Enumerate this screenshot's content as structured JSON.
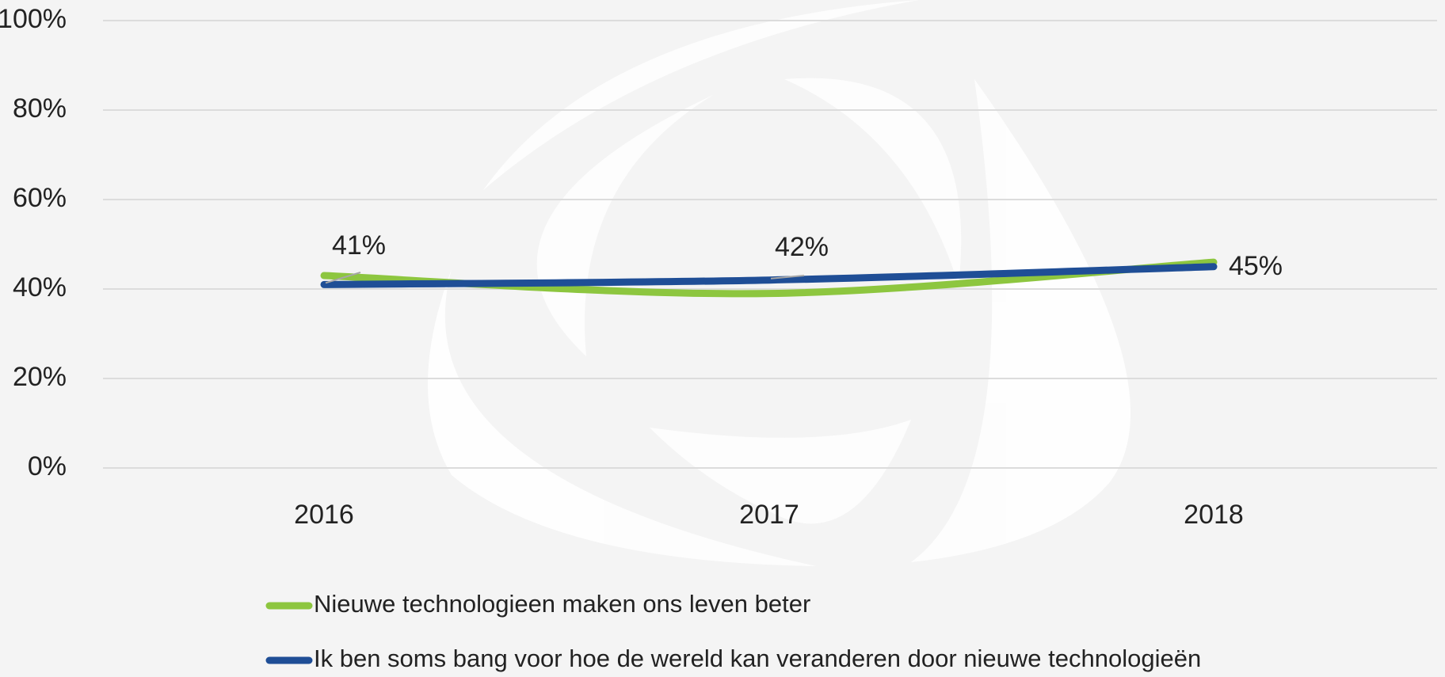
{
  "chart_data": {
    "type": "line",
    "categories": [
      "2016",
      "2017",
      "2018"
    ],
    "series": [
      {
        "name": "Nieuwe technologieen maken ons leven beter",
        "color": "#8dc63f",
        "values": [
          43,
          39,
          46
        ]
      },
      {
        "name": "Ik ben soms bang voor hoe de wereld kan veranderen door nieuwe technologieën",
        "color": "#1f4e96",
        "values": [
          41,
          42,
          45
        ],
        "value_labels": [
          "41%",
          "42%",
          "45%"
        ]
      }
    ],
    "ylim": [
      0,
      100
    ],
    "yticks": [
      {
        "value": 0,
        "label": "0%"
      },
      {
        "value": 20,
        "label": "20%"
      },
      {
        "value": 40,
        "label": "40%"
      },
      {
        "value": 60,
        "label": "60%"
      },
      {
        "value": 80,
        "label": "80%"
      },
      {
        "value": 100,
        "label": "100%"
      }
    ],
    "grid": true
  }
}
